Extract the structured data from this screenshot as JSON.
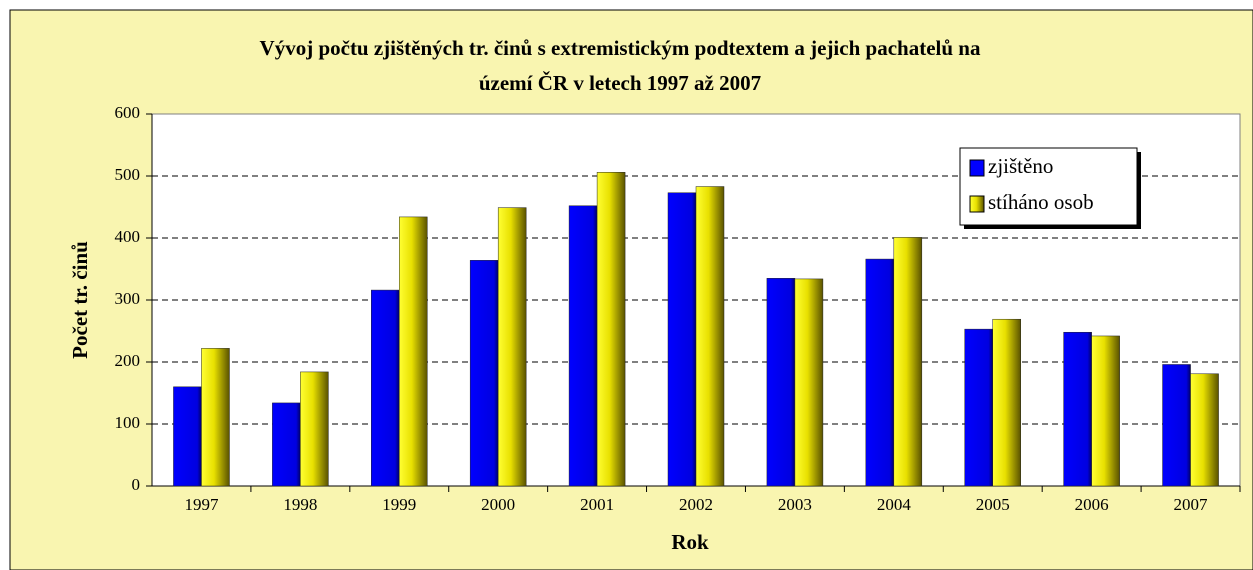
{
  "chart_data": {
    "type": "bar",
    "title": [
      "Vývoj počtu zjištěných tr. činů s extremistickým podtextem a jejich pachatelů na",
      "území ČR v letech 1997 až 2007"
    ],
    "x_label": "Rok",
    "y_label": "Počet  tr. činů",
    "categories": [
      "1997",
      "1998",
      "1999",
      "2000",
      "2001",
      "2002",
      "2003",
      "2004",
      "2005",
      "2006",
      "2007"
    ],
    "series": [
      {
        "name": "zjištěno",
        "color": "#0000ff",
        "values": [
          160,
          134,
          316,
          364,
          452,
          473,
          335,
          366,
          253,
          248,
          196
        ]
      },
      {
        "name": "stíháno osob",
        "color": "#ffff00",
        "values": [
          222,
          184,
          434,
          449,
          506,
          483,
          334,
          401,
          269,
          242,
          181
        ]
      }
    ],
    "ylim": [
      0,
      600
    ],
    "yticks": [
      0,
      100,
      200,
      300,
      400,
      500,
      600
    ],
    "grid": true,
    "legend": "upper right"
  }
}
